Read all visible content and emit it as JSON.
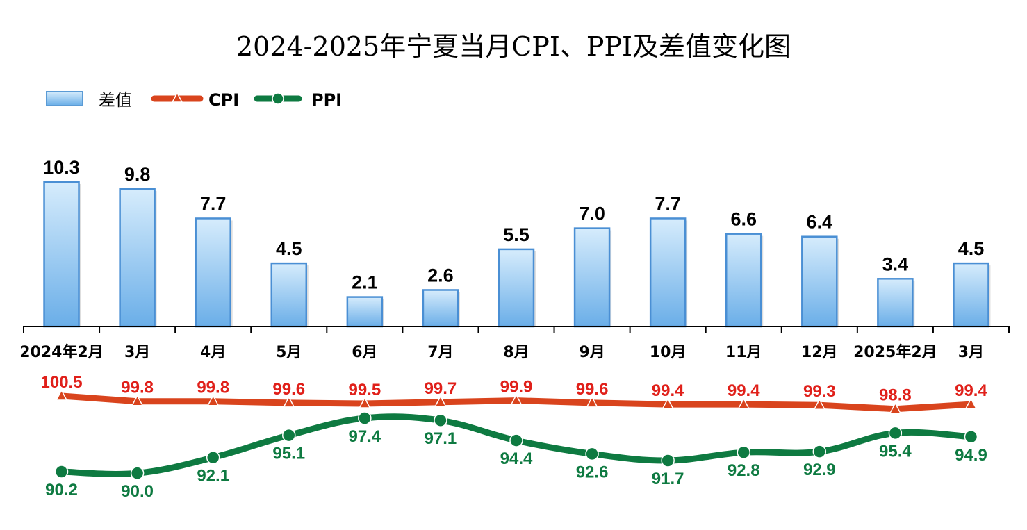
{
  "chart_data": {
    "type": "bar",
    "title": "2024-2025年宁夏当月CPI、PPI及差值变化图",
    "categories": [
      "2024年2月",
      "3月",
      "4月",
      "5月",
      "6月",
      "7月",
      "8月",
      "9月",
      "10月",
      "11月",
      "12月",
      "2025年2月",
      "3月"
    ],
    "legend": {
      "placement": "top-left"
    },
    "grid": false,
    "series": [
      {
        "name": "差值",
        "type": "bar",
        "color": "#7fb8ea",
        "values": [
          10.3,
          9.8,
          7.7,
          4.5,
          2.1,
          2.6,
          5.5,
          7.0,
          7.7,
          6.6,
          6.4,
          3.4,
          4.5
        ],
        "labels": [
          "10.3",
          "9.8",
          "7.7",
          "4.5",
          "2.1",
          "2.6",
          "5.5",
          "7.0",
          "7.7",
          "6.6",
          "6.4",
          "3.4",
          "4.5"
        ]
      },
      {
        "name": "CPI",
        "type": "line",
        "color": "#d9441d",
        "label_color": "#e0201a",
        "marker": "triangle",
        "values": [
          100.5,
          99.8,
          99.8,
          99.6,
          99.5,
          99.7,
          99.9,
          99.6,
          99.4,
          99.4,
          99.3,
          98.8,
          99.4
        ],
        "labels": [
          "100.5",
          "99.8",
          "99.8",
          "99.6",
          "99.5",
          "99.7",
          "99.9",
          "99.6",
          "99.4",
          "99.4",
          "99.3",
          "98.8",
          "99.4"
        ]
      },
      {
        "name": "PPI",
        "type": "line",
        "color": "#0e7a41",
        "marker": "circle",
        "values": [
          90.2,
          90.0,
          92.1,
          95.1,
          97.4,
          97.1,
          94.4,
          92.6,
          91.7,
          92.8,
          92.9,
          95.4,
          94.9
        ],
        "labels": [
          "90.2",
          "90.0",
          "92.1",
          "95.1",
          "97.4",
          "97.1",
          "94.4",
          "92.6",
          "91.7",
          "92.8",
          "92.9",
          "95.4",
          "94.9"
        ]
      }
    ]
  }
}
